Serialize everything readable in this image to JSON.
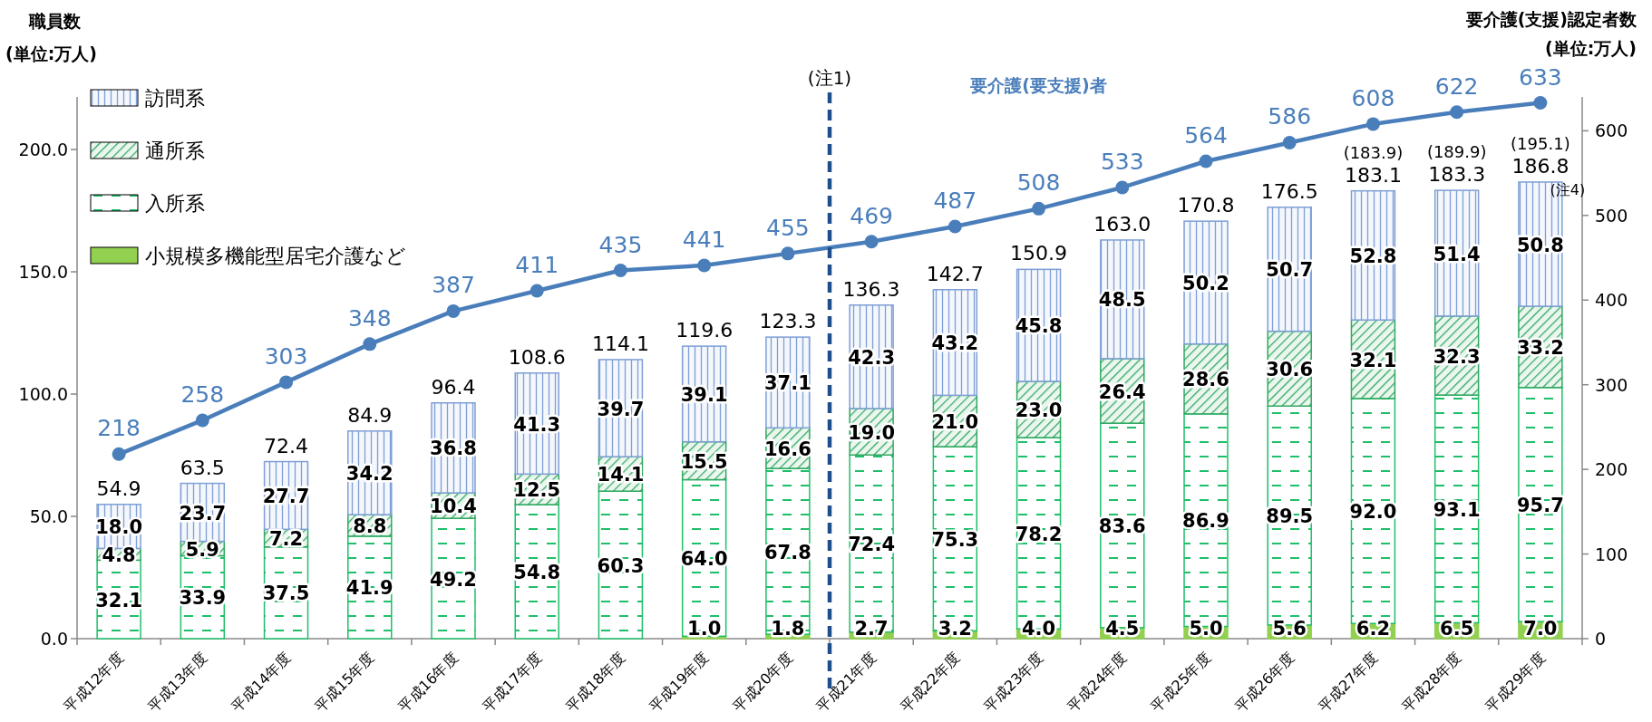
{
  "chart_data": {
    "type": "bar",
    "stacked": true,
    "legend": "top left",
    "marker": "circle",
    "ylabel": "職員数\n(単位:万人)",
    "y2label": "要介護(支援)認定者数\n(単位:万人)",
    "categories": [
      "平成12年度",
      "平成13年度",
      "平成14年度",
      "平成15年度",
      "平成16年度",
      "平成17年度",
      "平成18年度",
      "平成19年度",
      "平成20年度",
      "平成21年度",
      "平成22年度",
      "平成23年度",
      "平成24年度",
      "平成25年度",
      "平成26年度",
      "平成27年度",
      "平成28年度",
      "平成29年度"
    ],
    "series": [
      {
        "name": "小規模多機能型居宅介護など",
        "color": "#92d050",
        "values": [
          null,
          null,
          null,
          null,
          null,
          null,
          null,
          1.0,
          1.8,
          2.7,
          3.2,
          4.0,
          4.5,
          5.0,
          5.6,
          6.2,
          6.5,
          7.0
        ],
        "value_labels": [
          null,
          null,
          null,
          null,
          null,
          null,
          null,
          "1.0",
          "1.8",
          "2.7",
          "3.2",
          "4.0",
          "4.5",
          "5.0",
          "5.6",
          "6.2",
          "6.5",
          "7.0"
        ]
      },
      {
        "name": "入所系",
        "color": "#1fbf6a",
        "values": [
          32.1,
          33.9,
          37.5,
          41.9,
          49.2,
          54.8,
          60.3,
          64.0,
          67.8,
          72.4,
          75.3,
          78.2,
          83.6,
          86.9,
          89.5,
          92.0,
          93.1,
          95.7
        ],
        "value_labels": [
          "32.1",
          "33.9",
          "37.5",
          "41.9",
          "49.2",
          "54.8",
          "60.3",
          "64.0",
          "67.8",
          "72.4",
          "75.3",
          "78.2",
          "83.6",
          "86.9",
          "89.5",
          "92.0",
          "93.1",
          "95.7"
        ]
      },
      {
        "name": "通所系",
        "color": "#2fa860",
        "values": [
          4.8,
          5.9,
          7.2,
          8.8,
          10.4,
          12.5,
          14.1,
          15.5,
          16.6,
          19.0,
          21.0,
          23.0,
          26.4,
          28.6,
          30.6,
          32.1,
          32.3,
          33.2
        ],
        "value_labels": [
          "4.8",
          "5.9",
          "7.2",
          "8.8",
          "10.4",
          "12.5",
          "14.1",
          "15.5",
          "16.6",
          "19.0",
          "21.0",
          "23.0",
          "26.4",
          "28.6",
          "30.6",
          "32.1",
          "32.3",
          "33.2"
        ]
      },
      {
        "name": "訪問系",
        "color": "#7f9fd6",
        "values": [
          18.0,
          23.7,
          27.7,
          34.2,
          36.8,
          41.3,
          39.7,
          39.1,
          37.1,
          42.3,
          43.2,
          45.8,
          48.5,
          50.2,
          50.7,
          52.8,
          51.4,
          50.8
        ],
        "value_labels": [
          "18.0",
          "23.7",
          "27.7",
          "34.2",
          "36.8",
          "41.3",
          "39.7",
          "39.1",
          "37.1",
          "42.3",
          "43.2",
          "45.8",
          "48.5",
          "50.2",
          "50.7",
          "52.8",
          "51.4",
          "50.8"
        ]
      },
      {
        "name": "要介護(要支援)者",
        "type": "line",
        "axis": "y2",
        "color": "#4a7ebb",
        "values": [
          218,
          258,
          303,
          348,
          387,
          411,
          435,
          441,
          455,
          469,
          487,
          508,
          533,
          564,
          586,
          608,
          622,
          633
        ],
        "value_labels": [
          "218",
          "258",
          "303",
          "348",
          "387",
          "411",
          "435",
          "441",
          "455",
          "469",
          "487",
          "508",
          "533",
          "564",
          "586",
          "608",
          "622",
          "633"
        ]
      }
    ],
    "totals": [
      "54.9",
      "63.5",
      "72.4",
      "84.9",
      "96.4",
      "108.6",
      "114.1",
      "119.6",
      "123.3",
      "136.3",
      "142.7",
      "150.9",
      "163.0",
      "170.8",
      "176.5",
      "183.1",
      "183.3",
      "186.8"
    ],
    "ylim": [
      0,
      221.5
    ],
    "yticks": [
      {
        "value": 0,
        "label": "0.0"
      },
      {
        "value": 50,
        "label": "50.0"
      },
      {
        "value": 100,
        "label": "100.0"
      },
      {
        "value": 150,
        "label": "150.0"
      },
      {
        "value": 200,
        "label": "200.0"
      }
    ],
    "y2lim": [
      0,
      640
    ],
    "y2ticks": [
      0,
      100,
      200,
      300,
      400,
      500,
      600
    ],
    "annotations": [
      "(注1)",
      {
        "text": "(183.9)",
        "x": "平成27年度",
        "y": 183.1
      },
      {
        "text": "(189.9)",
        "x": "平成28年度",
        "y": 183.3
      },
      {
        "text": "(195.1)",
        "x": "平成29年度",
        "y": 186.8
      },
      {
        "text": "(注4)",
        "x": "平成29年度",
        "y": 186.8
      }
    ]
  }
}
